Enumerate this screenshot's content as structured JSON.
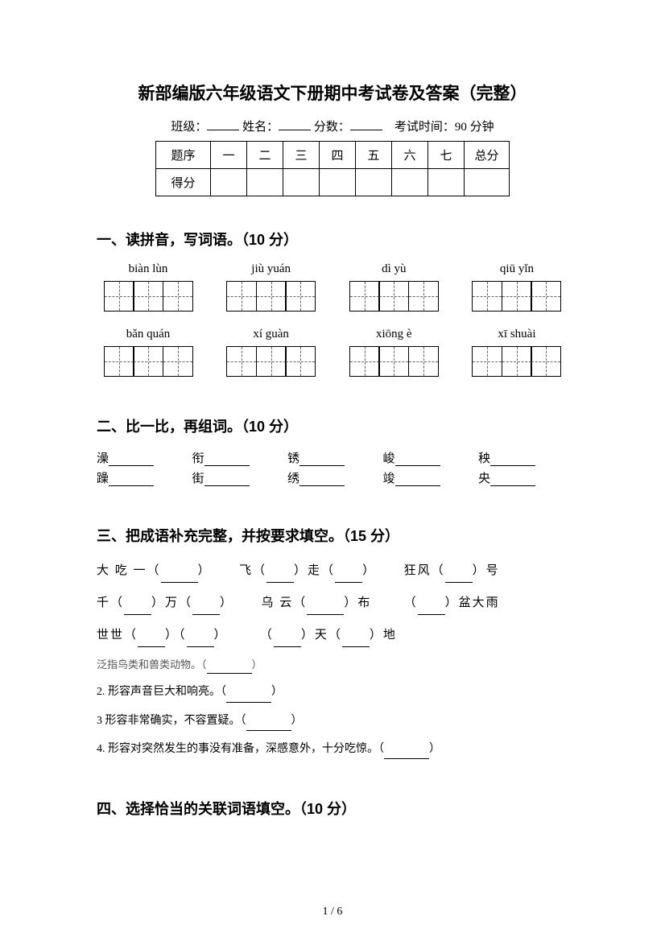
{
  "title": "新部编版六年级语文下册期中考试卷及答案（完整）",
  "header": {
    "class_label": "班级：",
    "name_label": "姓名：",
    "score_label": "分数：",
    "time_label": "考试时间：90 分钟"
  },
  "score_table": {
    "row1": [
      "题序",
      "一",
      "二",
      "三",
      "四",
      "五",
      "六",
      "七",
      "总分"
    ],
    "row2_label": "得分"
  },
  "section1": {
    "title": "一、读拼音，写词语。（10 分）",
    "pinyin_row1": [
      "biàn lùn",
      "jiù yuán",
      "dì yù",
      "qiū yǐn"
    ],
    "pinyin_row2": [
      "bǎn quán",
      "xí guàn",
      "xiōng è",
      "xī shuài"
    ],
    "boxes_per_group1": [
      3,
      3,
      3,
      3
    ],
    "boxes_per_group2": [
      3,
      3,
      3,
      3
    ]
  },
  "section2": {
    "title": "二、比一比，再组词。（10 分）",
    "pairs": [
      {
        "a": "澡",
        "b": "躁"
      },
      {
        "a": "衔",
        "b": "街"
      },
      {
        "a": "锈",
        "b": "绣"
      },
      {
        "a": "峻",
        "b": "竣"
      },
      {
        "a": "秧",
        "b": "央"
      }
    ]
  },
  "section3": {
    "title": "三、把成语补充完整，并按要求填空。（15 分）",
    "lines": [
      {
        "pre1": "大 吃 一（",
        "post1": "）",
        "gap": true,
        "pre2": "飞（",
        "mid2": "）走（",
        "post2": "）",
        "gap2": true,
        "pre3": "狂风（",
        "post3": "）号"
      },
      {
        "pre1": "千（",
        "mid1": "）万（",
        "post1": "）",
        "gap": true,
        "pre2": "乌 云（",
        "post2": "）布",
        "gap2": true,
        "pre3": "（",
        "post3": "）盆大雨"
      },
      {
        "pre1": "世世（",
        "mid1": "）（",
        "post1": "）",
        "gap": true,
        "pre2": "（",
        "mid2": "）天（",
        "post2": "）地"
      }
    ],
    "descs": [
      "泛指鸟类和兽类动物。（",
      "2. 形容声音巨大和响亮。（",
      "3 形容非常确实，不容置疑。（",
      "4. 形容对突然发生的事没有准备，深感意外，十分吃惊。（"
    ],
    "desc_close": "）"
  },
  "section4": {
    "title": "四、选择恰当的关联词语填空。（10 分）"
  },
  "page_num": "1 / 6"
}
